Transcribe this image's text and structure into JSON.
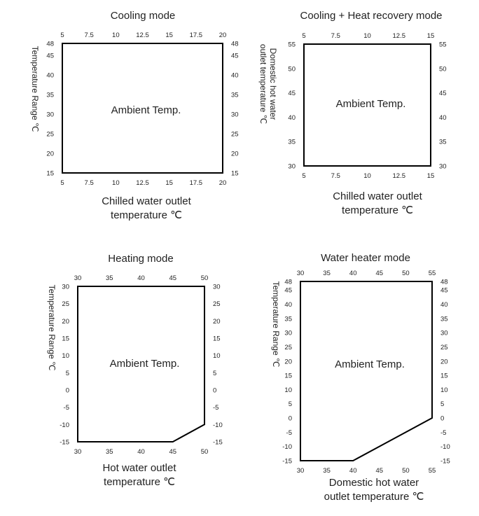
{
  "chart_data": [
    {
      "type": "area",
      "title": "Cooling mode",
      "annotation": "Ambient Temp.",
      "xlabel_lines": [
        "Chilled water outlet",
        "temperature ℃"
      ],
      "ylabel_lines": [
        "Temperature Range ℃"
      ],
      "xlim": [
        5,
        20
      ],
      "ylim": [
        15,
        48
      ],
      "x_ticks": [
        "5",
        "7.5",
        "10",
        "12.5",
        "15",
        "17.5",
        "20"
      ],
      "y_ticks": [
        "15",
        "20",
        "25",
        "30",
        "35",
        "40",
        "45",
        "48"
      ],
      "series": [
        {
          "x": [
            5,
            5,
            20,
            20,
            5
          ],
          "y": [
            15,
            48,
            48,
            15,
            15
          ]
        }
      ]
    },
    {
      "type": "area",
      "title": "Cooling + Heat recovery mode",
      "annotation": "Ambient Temp.",
      "xlabel_lines": [
        "Chilled water outlet",
        "temperature ℃"
      ],
      "ylabel_lines": [
        "Domestic hot water",
        "outlet temperature ℃"
      ],
      "xlim": [
        5,
        15
      ],
      "ylim": [
        30,
        55
      ],
      "x_ticks": [
        "5",
        "7.5",
        "10",
        "12.5",
        "15"
      ],
      "y_ticks": [
        "30",
        "35",
        "40",
        "45",
        "50",
        "55"
      ],
      "series": [
        {
          "x": [
            5,
            5,
            15,
            15,
            5
          ],
          "y": [
            30,
            55,
            55,
            30,
            30
          ]
        }
      ]
    },
    {
      "type": "area",
      "title": "Heating mode",
      "annotation": "Ambient Temp.",
      "xlabel_lines": [
        "Hot water outlet",
        "temperature ℃"
      ],
      "ylabel_lines": [
        "Temperature Range ℃"
      ],
      "xlim": [
        30,
        50
      ],
      "ylim": [
        -15,
        30
      ],
      "x_ticks": [
        "30",
        "35",
        "40",
        "45",
        "50"
      ],
      "y_ticks": [
        "-15",
        "-10",
        "-5",
        "0",
        "5",
        "10",
        "15",
        "20",
        "25",
        "30"
      ],
      "series": [
        {
          "x": [
            30,
            30,
            50,
            50,
            45,
            30
          ],
          "y": [
            -15,
            30,
            30,
            -10,
            -15,
            -15
          ]
        }
      ]
    },
    {
      "type": "area",
      "title": "Water heater mode",
      "annotation": "Ambient Temp.",
      "xlabel_lines": [
        "Domestic hot water",
        "outlet temperature ℃"
      ],
      "ylabel_lines": [
        "Temperature Range ℃"
      ],
      "xlim": [
        30,
        55
      ],
      "ylim": [
        -15,
        48
      ],
      "x_ticks": [
        "30",
        "35",
        "40",
        "45",
        "50",
        "55"
      ],
      "y_ticks": [
        "-15",
        "-10",
        "-5",
        "0",
        "5",
        "10",
        "15",
        "20",
        "25",
        "30",
        "35",
        "40",
        "45",
        "48"
      ],
      "series": [
        {
          "x": [
            30,
            30,
            55,
            55,
            40,
            30
          ],
          "y": [
            -15,
            48,
            48,
            0,
            -15,
            -15
          ]
        }
      ]
    }
  ]
}
